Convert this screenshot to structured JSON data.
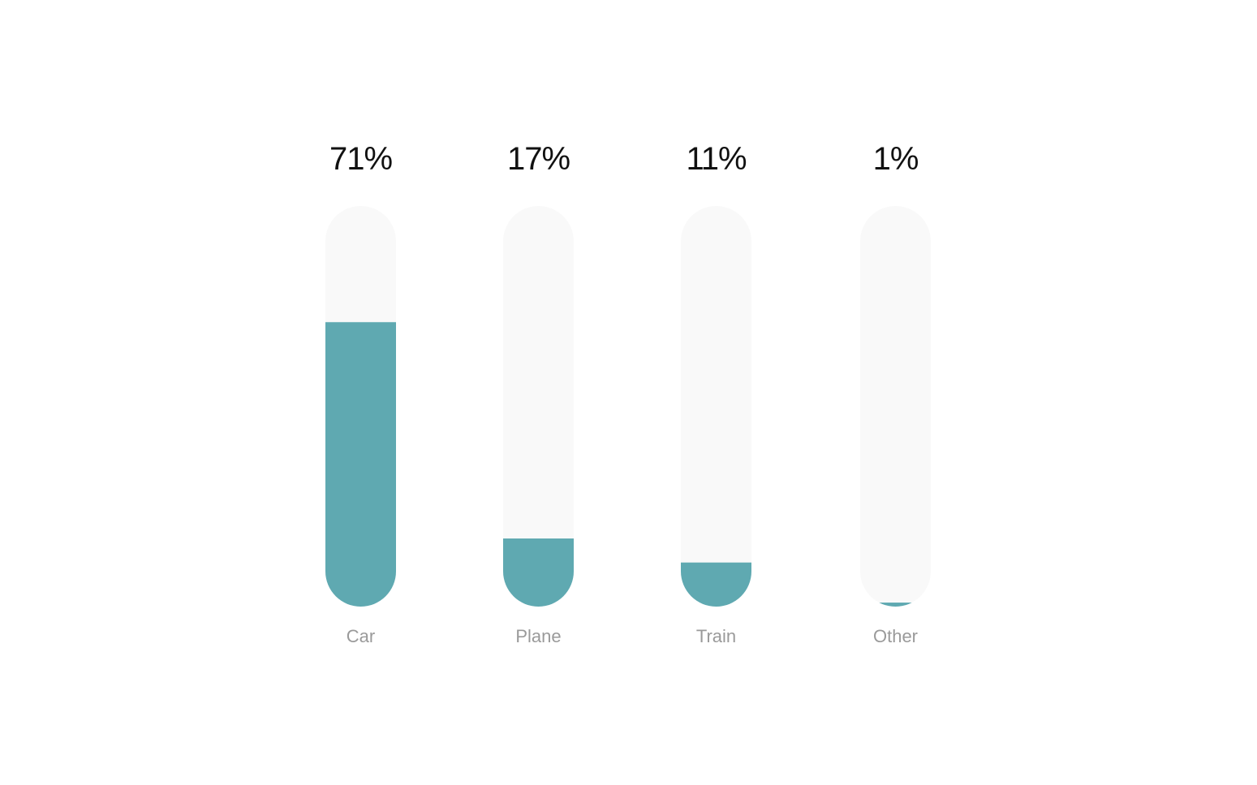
{
  "chart_data": {
    "type": "bar",
    "orientation": "vertical",
    "categories": [
      "Car",
      "Plane",
      "Train",
      "Other"
    ],
    "values": [
      71,
      17,
      11,
      1
    ],
    "value_labels": [
      "71%",
      "17%",
      "11%",
      "1%"
    ],
    "unit": "%",
    "ylim": [
      0,
      100
    ],
    "grid": false,
    "legend": "none",
    "colors": {
      "fill": "#5fa9b1",
      "track": "#f9f9f9",
      "value_text": "#111111",
      "category_text": "#9a9a9a"
    }
  }
}
